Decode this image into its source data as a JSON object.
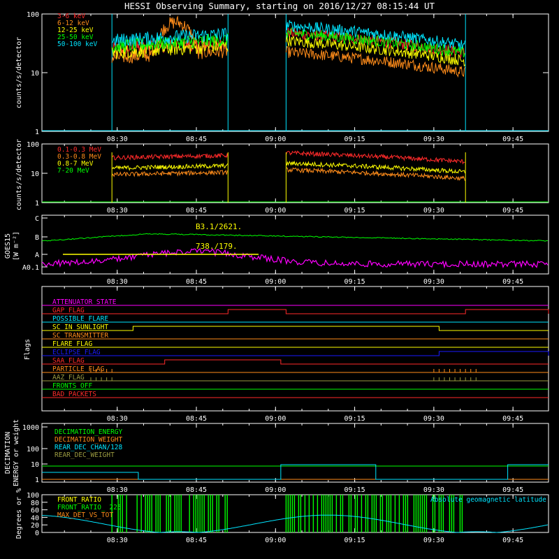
{
  "title": "HESSI Observing Summary, starting on 2016/12/27 08:15:44 UT",
  "time_ticks": [
    "08:30",
    "08:45",
    "09:00",
    "09:15",
    "09:30",
    "09:45"
  ],
  "colors": {
    "red": "#ff2a2a",
    "orange": "#ff8c1a",
    "yellow": "#ffff00",
    "green": "#00ff00",
    "cyan": "#00e5ff",
    "magenta": "#ff00ff",
    "blue": "#1a1aff",
    "olive": "#9a9a40",
    "white": "#ffffff",
    "darkred": "#ff4040"
  },
  "chart_data": [
    {
      "type": "line",
      "panel": "low-energy-rates",
      "ylabel": "counts/s/detector",
      "yscale": "log",
      "ylim": [
        1,
        100
      ],
      "y_ticks": [
        "1",
        "10",
        "100"
      ],
      "series": [
        {
          "name": "3-6 keV",
          "color": "#ff2a2a",
          "level_early": 25,
          "level_late": 30
        },
        {
          "name": "6-12 keV",
          "color": "#ff8c1a",
          "level_early": 18,
          "level_late": 14
        },
        {
          "name": "12-25 keV",
          "color": "#ffff00",
          "level_early": 22,
          "level_late": 22
        },
        {
          "name": "25-50 keV",
          "color": "#00ff00",
          "level_early": 28,
          "level_late": 30
        },
        {
          "name": "50-100 keV",
          "color": "#00e5ff",
          "level_early": 35,
          "level_late": 40
        }
      ],
      "data_windows": [
        [
          "08:29",
          "08:51"
        ],
        [
          "09:02",
          "09:36"
        ]
      ]
    },
    {
      "type": "line",
      "panel": "high-energy-rates",
      "ylabel": "counts/s/detector",
      "yscale": "log",
      "ylim": [
        1,
        100
      ],
      "y_ticks": [
        "1",
        "10",
        "100"
      ],
      "series": [
        {
          "name": "0.1-0.3 MeV",
          "color": "#ff2a2a",
          "level": 45
        },
        {
          "name": "0.3-0.8 MeV",
          "color": "#ff8c1a",
          "level": 12
        },
        {
          "name": "0.8-7 MeV",
          "color": "#ffff00",
          "level": 20
        },
        {
          "name": "7-20 MeV",
          "color": "#00ff00",
          "level": 1
        }
      ]
    },
    {
      "type": "line",
      "panel": "goes",
      "ylabel": "GOES15",
      "ylabel2": "[W m⁻²]",
      "y_ticks": [
        "C",
        "B",
        "A",
        "A0.1"
      ],
      "annotations": [
        "B3.1/2621.",
        "738./179."
      ]
    },
    {
      "type": "line",
      "panel": "flags",
      "ylabel": "Flags",
      "flags": [
        {
          "name": "ATTENUATOR_STATE",
          "color": "#ff00ff"
        },
        {
          "name": "GAP_FLAG",
          "color": "#ff2a2a"
        },
        {
          "name": "POSSIBLE_FLARE",
          "color": "#00e5ff"
        },
        {
          "name": "SC_IN_SUNLIGHT",
          "color": "#ffff00"
        },
        {
          "name": "SC_TRANSMITTER",
          "color": "#ff8c1a"
        },
        {
          "name": "FLARE_FLAG",
          "color": "#ffff00"
        },
        {
          "name": "ECLIPSE_FLAG",
          "color": "#1a1aff"
        },
        {
          "name": "SAA_FLAG",
          "color": "#ff2a2a"
        },
        {
          "name": "PARTICLE_FLAG",
          "color": "#ff8c1a"
        },
        {
          "name": "AAZ_FLAG",
          "color": "#9a9a40"
        },
        {
          "name": "FRONTS_OFF",
          "color": "#00ff00"
        },
        {
          "name": "BAD_PACKETS",
          "color": "#ff2a2a"
        }
      ]
    },
    {
      "type": "line",
      "panel": "decimation",
      "ylabel": "DECIMATION",
      "ylabel2": "ENERGY or weight",
      "yscale": "log",
      "y_ticks": [
        "1",
        "10",
        "100",
        "1000"
      ],
      "series": [
        {
          "name": "DECIMATION_ENERGY",
          "color": "#00ff00"
        },
        {
          "name": "DECIMATION_WEIGHT",
          "color": "#ff8c1a"
        },
        {
          "name": "REAR_DEC_CHAN/128",
          "color": "#00e5ff"
        },
        {
          "name": "REAR_DEC_WEIGHT",
          "color": "#9a9a40"
        }
      ]
    },
    {
      "type": "line",
      "panel": "ratios",
      "ylabel": "Degrees or %",
      "y_ticks": [
        "0",
        "20",
        "40",
        "60",
        "80",
        "100"
      ],
      "series": [
        {
          "name": "FRONT_RATIO",
          "color": "#ffff00"
        },
        {
          "name": "FRONT_RATIO_ 225",
          "color": "#00ff00"
        },
        {
          "name": "MAX_DET_VS_TOT",
          "color": "#ff8c1a"
        }
      ],
      "right_label": "Absolute geomagnetic latitude"
    }
  ]
}
